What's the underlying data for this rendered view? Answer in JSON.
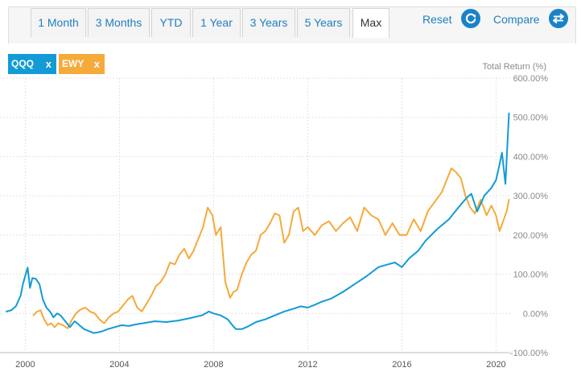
{
  "toolbar": {
    "ranges": [
      "1 Month",
      "3 Months",
      "YTD",
      "1 Year",
      "3 Years",
      "5 Years",
      "Max"
    ],
    "active_range": "Max",
    "reset_label": "Reset",
    "compare_label": "Compare",
    "reset_icon": "refresh-icon",
    "compare_icon": "swap-arrows-icon"
  },
  "chips": [
    {
      "label": "QQQ",
      "close": "x",
      "color": "#129bd6"
    },
    {
      "label": "EWY",
      "close": "x",
      "color": "#f5aa3a"
    }
  ],
  "chart_data": {
    "type": "line",
    "ylabel": "Total Return (%)",
    "ylim": [
      -100,
      600
    ],
    "yticks": [
      600,
      500,
      400,
      300,
      200,
      100,
      0,
      -100
    ],
    "ytick_labels": [
      "600.00%",
      "500.00%",
      "400.00%",
      "300.00%",
      "200.00%",
      "100.00%",
      "0.00%",
      "-100.00%"
    ],
    "xlim": [
      1999.2,
      2020.6
    ],
    "xticks": [
      2000,
      2004,
      2008,
      2012,
      2016,
      2020
    ],
    "xtick_labels": [
      "2000",
      "2004",
      "2008",
      "2012",
      "2016",
      "2020"
    ],
    "grid": true,
    "series": [
      {
        "name": "QQQ",
        "color": "#129bd6",
        "x": [
          1999.2,
          1999.4,
          1999.6,
          1999.8,
          1999.9,
          2000.1,
          2000.2,
          2000.3,
          2000.45,
          2000.6,
          2000.75,
          2000.9,
          2001.05,
          2001.2,
          2001.35,
          2001.5,
          2001.7,
          2001.9,
          2002.1,
          2002.3,
          2002.5,
          2002.7,
          2002.9,
          2003.1,
          2003.3,
          2003.5,
          2003.8,
          2004.1,
          2004.4,
          2004.7,
          2005.0,
          2005.5,
          2006.0,
          2006.5,
          2007.0,
          2007.5,
          2007.8,
          2008.0,
          2008.3,
          2008.6,
          2008.8,
          2008.95,
          2009.2,
          2009.5,
          2009.8,
          2010.2,
          2010.6,
          2011.0,
          2011.4,
          2011.7,
          2012.0,
          2012.3,
          2012.6,
          2013.0,
          2013.5,
          2014.0,
          2014.5,
          2015.0,
          2015.4,
          2015.7,
          2016.0,
          2016.3,
          2016.7,
          2017.0,
          2017.5,
          2018.0,
          2018.4,
          2018.75,
          2018.95,
          2019.2,
          2019.5,
          2019.8,
          2020.0,
          2020.15,
          2020.25,
          2020.4,
          2020.55
        ],
        "values": [
          5,
          8,
          18,
          45,
          75,
          117,
          65,
          90,
          88,
          75,
          35,
          15,
          5,
          -10,
          0,
          -5,
          -20,
          -35,
          -20,
          -30,
          -40,
          -45,
          -50,
          -48,
          -45,
          -40,
          -35,
          -30,
          -32,
          -28,
          -25,
          -20,
          -22,
          -18,
          -12,
          -5,
          5,
          0,
          -5,
          -15,
          -30,
          -40,
          -40,
          -32,
          -22,
          -15,
          -5,
          5,
          12,
          18,
          15,
          22,
          30,
          38,
          55,
          75,
          95,
          118,
          125,
          130,
          118,
          140,
          160,
          185,
          215,
          240,
          270,
          295,
          305,
          260,
          300,
          320,
          340,
          380,
          410,
          330,
          510
        ]
      },
      {
        "name": "EWY",
        "color": "#f5aa3a",
        "x": [
          2000.35,
          2000.5,
          2000.65,
          2000.8,
          2000.95,
          2001.1,
          2001.25,
          2001.4,
          2001.6,
          2001.8,
          2001.95,
          2002.15,
          2002.35,
          2002.55,
          2002.75,
          2002.95,
          2003.15,
          2003.35,
          2003.55,
          2003.75,
          2003.95,
          2004.15,
          2004.35,
          2004.55,
          2004.75,
          2004.95,
          2005.15,
          2005.35,
          2005.55,
          2005.75,
          2005.95,
          2006.15,
          2006.35,
          2006.55,
          2006.75,
          2006.95,
          2007.15,
          2007.35,
          2007.55,
          2007.75,
          2007.95,
          2008.1,
          2008.3,
          2008.5,
          2008.7,
          2008.85,
          2009.0,
          2009.2,
          2009.4,
          2009.6,
          2009.8,
          2010.0,
          2010.2,
          2010.4,
          2010.6,
          2010.8,
          2011.0,
          2011.2,
          2011.4,
          2011.6,
          2011.8,
          2012.0,
          2012.3,
          2012.6,
          2012.9,
          2013.2,
          2013.5,
          2013.8,
          2014.1,
          2014.4,
          2014.7,
          2015.0,
          2015.3,
          2015.6,
          2015.9,
          2016.2,
          2016.5,
          2016.8,
          2017.1,
          2017.4,
          2017.7,
          2017.9,
          2018.1,
          2018.3,
          2018.5,
          2018.7,
          2018.9,
          2019.1,
          2019.35,
          2019.6,
          2019.8,
          2020.0,
          2020.15,
          2020.3,
          2020.45,
          2020.55
        ],
        "values": [
          -5,
          5,
          8,
          -15,
          -30,
          -25,
          -35,
          -25,
          -30,
          -38,
          -20,
          0,
          10,
          15,
          5,
          0,
          -15,
          -25,
          -10,
          0,
          5,
          20,
          35,
          45,
          15,
          5,
          25,
          45,
          70,
          80,
          100,
          130,
          125,
          150,
          165,
          140,
          160,
          190,
          220,
          270,
          250,
          200,
          220,
          80,
          40,
          55,
          60,
          100,
          130,
          150,
          160,
          200,
          210,
          230,
          255,
          250,
          180,
          200,
          260,
          270,
          210,
          220,
          200,
          225,
          235,
          210,
          230,
          245,
          210,
          270,
          250,
          240,
          200,
          230,
          200,
          200,
          240,
          210,
          260,
          285,
          310,
          340,
          370,
          360,
          345,
          300,
          270,
          255,
          290,
          250,
          275,
          250,
          210,
          235,
          260,
          290
        ]
      }
    ]
  }
}
